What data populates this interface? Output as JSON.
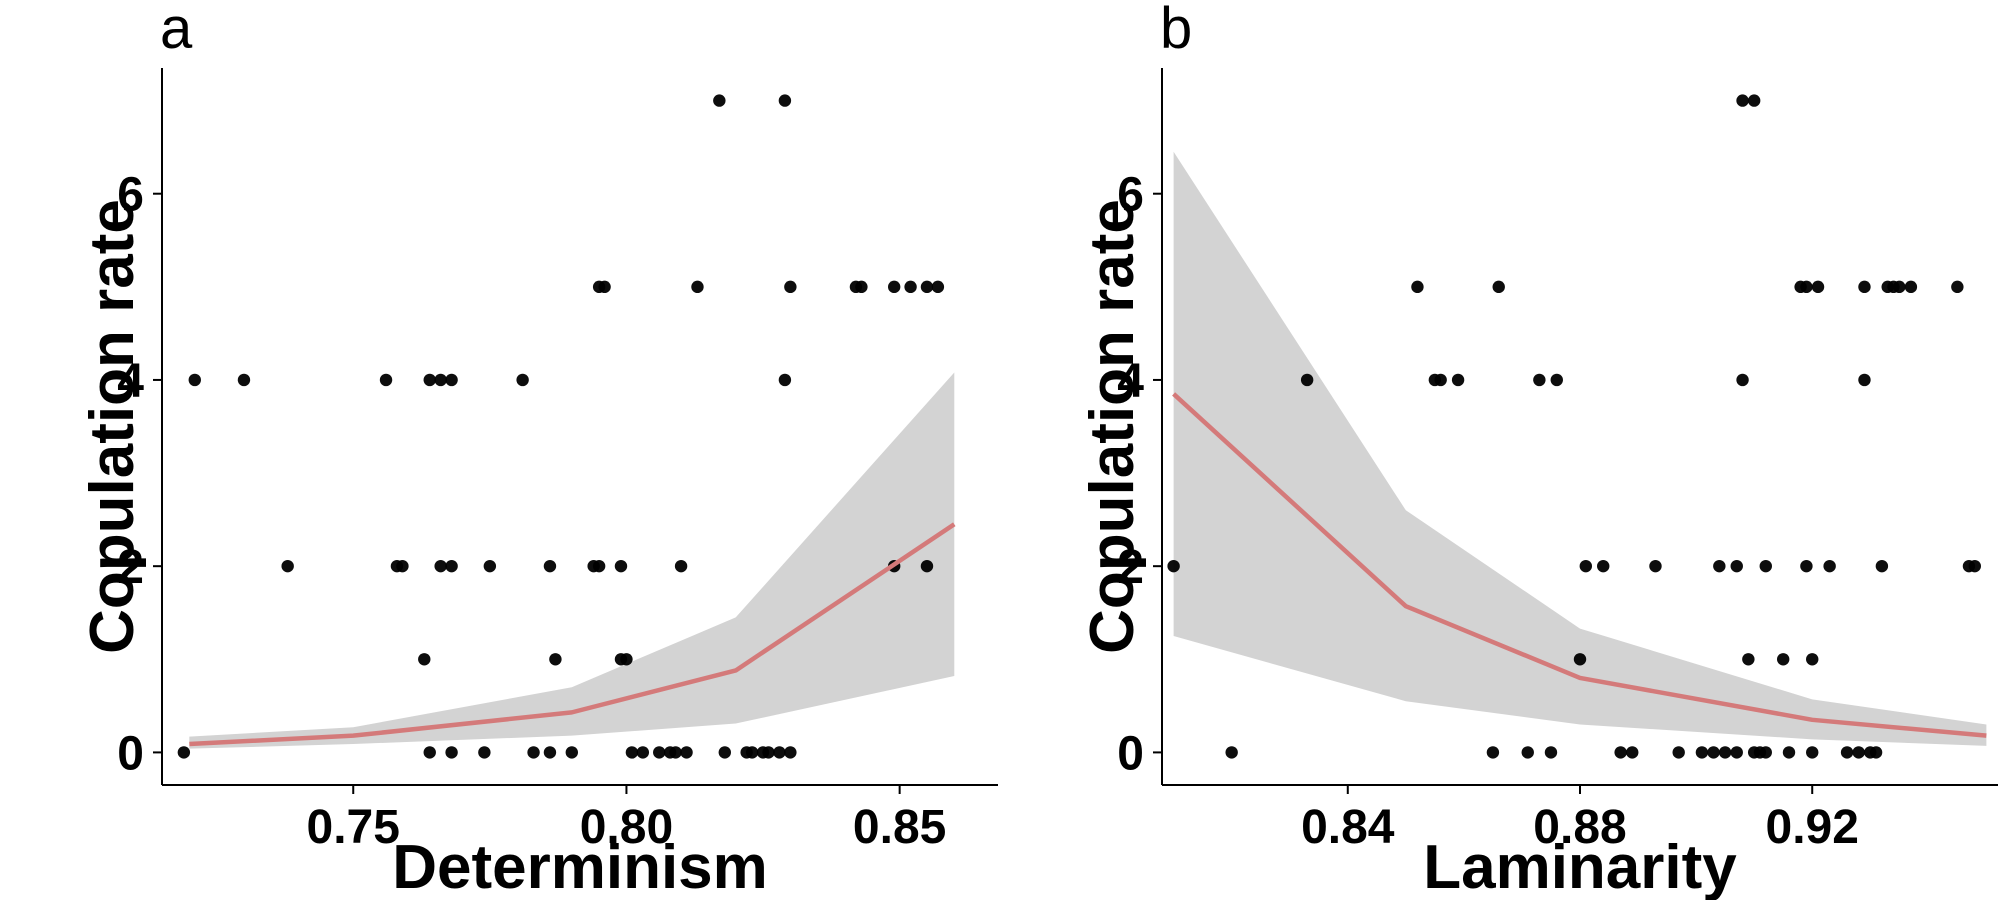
{
  "chart_data": [
    {
      "type": "scatter",
      "panel_label": "a",
      "xlabel": "Determinism",
      "ylabel": "Copulation rate",
      "xlim": [
        0.715,
        0.868
      ],
      "ylim": [
        -0.35,
        7.35
      ],
      "xticks": [
        0.75,
        0.8,
        0.85
      ],
      "xtick_labels": [
        "0.75",
        "0.80",
        "0.85"
      ],
      "yticks": [
        0,
        2,
        4,
        6
      ],
      "ytick_labels": [
        "0",
        "2",
        "4",
        "6"
      ],
      "grid": false,
      "colors": {
        "points": "#000000",
        "fit_line": "#d47a7a",
        "ribbon": "#d3d3d3"
      },
      "points": [
        [
          0.719,
          0
        ],
        [
          0.721,
          4
        ],
        [
          0.73,
          4
        ],
        [
          0.738,
          2
        ],
        [
          0.756,
          4
        ],
        [
          0.758,
          2
        ],
        [
          0.759,
          2
        ],
        [
          0.763,
          1
        ],
        [
          0.764,
          0
        ],
        [
          0.764,
          4
        ],
        [
          0.766,
          4
        ],
        [
          0.766,
          2
        ],
        [
          0.768,
          0
        ],
        [
          0.768,
          2
        ],
        [
          0.768,
          4
        ],
        [
          0.774,
          0
        ],
        [
          0.775,
          2
        ],
        [
          0.781,
          4
        ],
        [
          0.783,
          0
        ],
        [
          0.786,
          0
        ],
        [
          0.786,
          2
        ],
        [
          0.787,
          1
        ],
        [
          0.79,
          0
        ],
        [
          0.794,
          2
        ],
        [
          0.795,
          2
        ],
        [
          0.795,
          5
        ],
        [
          0.796,
          5
        ],
        [
          0.799,
          2
        ],
        [
          0.799,
          1
        ],
        [
          0.8,
          1
        ],
        [
          0.801,
          0
        ],
        [
          0.803,
          0
        ],
        [
          0.806,
          0
        ],
        [
          0.808,
          0
        ],
        [
          0.809,
          0
        ],
        [
          0.81,
          2
        ],
        [
          0.811,
          0
        ],
        [
          0.813,
          5
        ],
        [
          0.817,
          7
        ],
        [
          0.818,
          0
        ],
        [
          0.822,
          0
        ],
        [
          0.823,
          0
        ],
        [
          0.825,
          0
        ],
        [
          0.826,
          0
        ],
        [
          0.828,
          0
        ],
        [
          0.829,
          4
        ],
        [
          0.829,
          7
        ],
        [
          0.83,
          0
        ],
        [
          0.83,
          5
        ],
        [
          0.842,
          5
        ],
        [
          0.843,
          5
        ],
        [
          0.849,
          5
        ],
        [
          0.849,
          2
        ],
        [
          0.852,
          5
        ],
        [
          0.855,
          5
        ],
        [
          0.855,
          2
        ],
        [
          0.857,
          5
        ]
      ],
      "fit": {
        "x": [
          0.72,
          0.75,
          0.79,
          0.82,
          0.86
        ],
        "y": [
          0.09,
          0.18,
          0.43,
          0.88,
          2.45
        ],
        "lower": [
          0.04,
          0.09,
          0.18,
          0.31,
          0.82
        ],
        "upper": [
          0.17,
          0.27,
          0.7,
          1.45,
          4.08
        ]
      }
    },
    {
      "type": "scatter",
      "panel_label": "b",
      "xlabel": "Laminarity",
      "ylabel": "Copulation rate",
      "xlim": [
        0.808,
        0.952
      ],
      "ylim": [
        -0.35,
        7.35
      ],
      "xticks": [
        0.84,
        0.88,
        0.92
      ],
      "xtick_labels": [
        "0.84",
        "0.88",
        "0.92"
      ],
      "yticks": [
        0,
        2,
        4,
        6
      ],
      "ytick_labels": [
        "0",
        "2",
        "4",
        "6"
      ],
      "grid": false,
      "colors": {
        "points": "#000000",
        "fit_line": "#d47a7a",
        "ribbon": "#d3d3d3"
      },
      "points": [
        [
          0.81,
          2
        ],
        [
          0.82,
          0
        ],
        [
          0.833,
          4
        ],
        [
          0.852,
          5
        ],
        [
          0.855,
          4
        ],
        [
          0.856,
          4
        ],
        [
          0.859,
          4
        ],
        [
          0.865,
          0
        ],
        [
          0.866,
          5
        ],
        [
          0.871,
          0
        ],
        [
          0.873,
          4
        ],
        [
          0.875,
          0
        ],
        [
          0.876,
          4
        ],
        [
          0.88,
          1
        ],
        [
          0.881,
          2
        ],
        [
          0.884,
          2
        ],
        [
          0.887,
          0
        ],
        [
          0.889,
          0
        ],
        [
          0.893,
          2
        ],
        [
          0.897,
          0
        ],
        [
          0.901,
          0
        ],
        [
          0.903,
          0
        ],
        [
          0.905,
          0
        ],
        [
          0.904,
          2
        ],
        [
          0.907,
          0
        ],
        [
          0.907,
          2
        ],
        [
          0.908,
          4
        ],
        [
          0.908,
          7
        ],
        [
          0.909,
          1
        ],
        [
          0.91,
          0
        ],
        [
          0.91,
          7
        ],
        [
          0.911,
          0
        ],
        [
          0.912,
          0
        ],
        [
          0.912,
          2
        ],
        [
          0.915,
          1
        ],
        [
          0.916,
          0
        ],
        [
          0.918,
          5
        ],
        [
          0.919,
          5
        ],
        [
          0.919,
          2
        ],
        [
          0.92,
          0
        ],
        [
          0.92,
          1
        ],
        [
          0.921,
          5
        ],
        [
          0.923,
          2
        ],
        [
          0.926,
          0
        ],
        [
          0.928,
          0
        ],
        [
          0.929,
          5
        ],
        [
          0.929,
          4
        ],
        [
          0.93,
          0
        ],
        [
          0.931,
          0
        ],
        [
          0.932,
          2
        ],
        [
          0.933,
          5
        ],
        [
          0.934,
          5
        ],
        [
          0.935,
          5
        ],
        [
          0.937,
          5
        ],
        [
          0.945,
          5
        ],
        [
          0.947,
          2
        ],
        [
          0.948,
          2
        ]
      ],
      "fit": {
        "x": [
          0.81,
          0.85,
          0.88,
          0.92,
          0.95
        ],
        "y": [
          3.85,
          1.57,
          0.8,
          0.35,
          0.18
        ],
        "lower": [
          1.25,
          0.55,
          0.3,
          0.14,
          0.07
        ],
        "upper": [
          6.45,
          2.6,
          1.33,
          0.57,
          0.3
        ]
      }
    }
  ]
}
